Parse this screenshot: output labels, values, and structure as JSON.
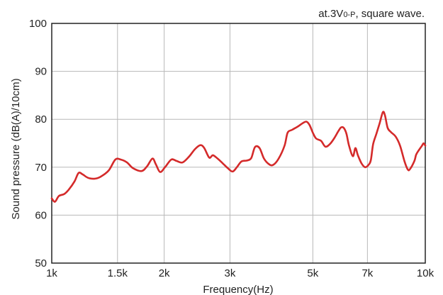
{
  "chart_data": {
    "type": "line",
    "annotation": {
      "prefix": "at.3V",
      "subscript": "0-P",
      "suffix": ", square wave."
    },
    "xlabel": "Frequency(Hz)",
    "ylabel": "Sound pressure (dB(A)/10cm)",
    "x_scale": "log",
    "xlim": [
      1000,
      10000
    ],
    "ylim": [
      50,
      100
    ],
    "grid": true,
    "x_ticks": [
      {
        "value": 1000,
        "label": "1k"
      },
      {
        "value": 1500,
        "label": "1.5k"
      },
      {
        "value": 2000,
        "label": "2k"
      },
      {
        "value": 3000,
        "label": "3k"
      },
      {
        "value": 5000,
        "label": "5k"
      },
      {
        "value": 7000,
        "label": "7k"
      },
      {
        "value": 10000,
        "label": "10k"
      }
    ],
    "y_ticks": [
      {
        "value": 50,
        "label": "50"
      },
      {
        "value": 60,
        "label": "60"
      },
      {
        "value": 70,
        "label": "70"
      },
      {
        "value": 80,
        "label": "80"
      },
      {
        "value": 90,
        "label": "90"
      },
      {
        "value": 100,
        "label": "100"
      }
    ],
    "series": [
      {
        "color": "#d42a2a",
        "points": [
          [
            1000,
            63.5
          ],
          [
            1020,
            62.8
          ],
          [
            1045,
            64.0
          ],
          [
            1080,
            64.4
          ],
          [
            1110,
            65.3
          ],
          [
            1150,
            67.0
          ],
          [
            1180,
            68.8
          ],
          [
            1210,
            68.5
          ],
          [
            1250,
            67.8
          ],
          [
            1300,
            67.6
          ],
          [
            1350,
            68.0
          ],
          [
            1420,
            69.3
          ],
          [
            1480,
            71.6
          ],
          [
            1530,
            71.6
          ],
          [
            1590,
            71.0
          ],
          [
            1650,
            69.8
          ],
          [
            1740,
            69.2
          ],
          [
            1800,
            70.2
          ],
          [
            1860,
            71.8
          ],
          [
            1900,
            70.6
          ],
          [
            1950,
            69.0
          ],
          [
            2010,
            70.0
          ],
          [
            2090,
            71.6
          ],
          [
            2160,
            71.3
          ],
          [
            2240,
            71.0
          ],
          [
            2330,
            72.2
          ],
          [
            2420,
            73.8
          ],
          [
            2500,
            74.6
          ],
          [
            2560,
            74.0
          ],
          [
            2640,
            72.0
          ],
          [
            2700,
            72.5
          ],
          [
            2780,
            71.8
          ],
          [
            2870,
            70.8
          ],
          [
            2960,
            69.8
          ],
          [
            3050,
            69.1
          ],
          [
            3130,
            70.0
          ],
          [
            3220,
            71.2
          ],
          [
            3330,
            71.4
          ],
          [
            3420,
            71.9
          ],
          [
            3500,
            74.2
          ],
          [
            3600,
            74.0
          ],
          [
            3700,
            71.8
          ],
          [
            3820,
            70.6
          ],
          [
            3920,
            70.5
          ],
          [
            4050,
            71.8
          ],
          [
            4200,
            74.5
          ],
          [
            4280,
            77.2
          ],
          [
            4400,
            77.8
          ],
          [
            4560,
            78.5
          ],
          [
            4700,
            79.2
          ],
          [
            4810,
            79.5
          ],
          [
            4900,
            78.8
          ],
          [
            5000,
            77.2
          ],
          [
            5100,
            76.0
          ],
          [
            5260,
            75.5
          ],
          [
            5400,
            74.3
          ],
          [
            5550,
            74.8
          ],
          [
            5700,
            76.0
          ],
          [
            5850,
            77.5
          ],
          [
            5950,
            78.3
          ],
          [
            6050,
            78.2
          ],
          [
            6150,
            77.0
          ],
          [
            6250,
            74.5
          ],
          [
            6400,
            72.3
          ],
          [
            6500,
            74.0
          ],
          [
            6600,
            72.5
          ],
          [
            6750,
            70.8
          ],
          [
            6900,
            70.0
          ],
          [
            7050,
            70.5
          ],
          [
            7150,
            71.5
          ],
          [
            7250,
            74.8
          ],
          [
            7400,
            77.0
          ],
          [
            7550,
            79.2
          ],
          [
            7700,
            81.5
          ],
          [
            7800,
            80.8
          ],
          [
            7930,
            78.2
          ],
          [
            8100,
            77.3
          ],
          [
            8330,
            76.4
          ],
          [
            8560,
            74.5
          ],
          [
            8800,
            71.2
          ],
          [
            8980,
            69.5
          ],
          [
            9100,
            69.6
          ],
          [
            9350,
            71.3
          ],
          [
            9450,
            72.6
          ],
          [
            9600,
            73.5
          ],
          [
            9800,
            74.5
          ],
          [
            9900,
            75.0
          ],
          [
            10000,
            74.5
          ]
        ]
      }
    ]
  }
}
